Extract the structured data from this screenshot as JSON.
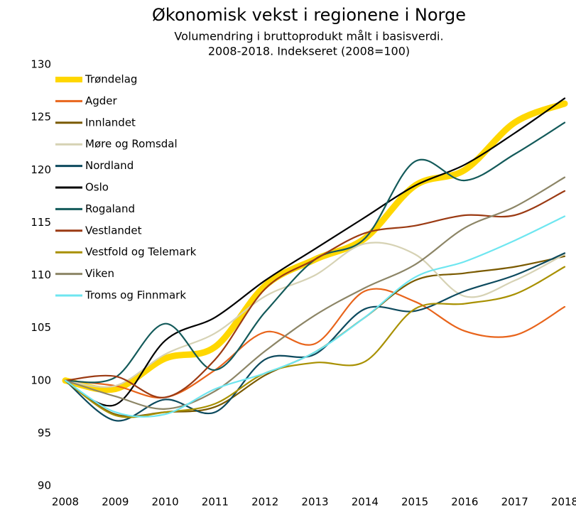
{
  "chart_data": {
    "type": "line",
    "title": "Økonomisk vekst i regionene i Norge",
    "subtitle": [
      "Volumendring i bruttoprodukt målt i basisverdi.",
      "2008-2018. Indekseret (2008=100)"
    ],
    "categories": [
      "2008",
      "2009",
      "2010",
      "2011",
      "2012",
      "2013",
      "2014",
      "2015",
      "2016",
      "2017",
      "2018"
    ],
    "ylim": [
      90,
      130
    ],
    "yticks": [
      90,
      95,
      100,
      105,
      110,
      115,
      120,
      125,
      130
    ],
    "grid": false,
    "legend": "upper left",
    "series": [
      {
        "name": "Trøndelag",
        "color": "#ffd700",
        "values": [
          100,
          99.2,
          102.1,
          103.2,
          109,
          111.5,
          113.5,
          118.5,
          120,
          124.5,
          126.3
        ]
      },
      {
        "name": "Agder",
        "color": "#e8641b",
        "values": [
          100,
          99.5,
          98.4,
          101,
          104.6,
          103.5,
          108.5,
          107.5,
          104.7,
          104.3,
          107
        ]
      },
      {
        "name": "Innlandet",
        "color": "#7a5a00",
        "values": [
          100,
          96.8,
          97,
          97.5,
          100.5,
          102.7,
          106,
          109.5,
          110.2,
          110.8,
          111.8
        ]
      },
      {
        "name": "Møre og Romsdal",
        "color": "#d6d2b4",
        "values": [
          100,
          99.5,
          102.5,
          104.5,
          108,
          110,
          113,
          112,
          108,
          109.5,
          112
        ]
      },
      {
        "name": "Nordland",
        "color": "#0d4a5e",
        "values": [
          100,
          96.2,
          98.2,
          97,
          102,
          102.5,
          106.8,
          106.6,
          108.5,
          110,
          112.1
        ]
      },
      {
        "name": "Oslo",
        "color": "#000000",
        "values": [
          100,
          97.7,
          103.8,
          106,
          109.5,
          112.5,
          115.5,
          118.5,
          120.5,
          123.5,
          126.8
        ]
      },
      {
        "name": "Rogaland",
        "color": "#135a5a",
        "values": [
          100,
          100.3,
          105.4,
          101,
          106.5,
          111.5,
          113.5,
          120.8,
          119,
          121.5,
          124.5
        ]
      },
      {
        "name": "Vestlandet",
        "color": "#9b3a13",
        "values": [
          100,
          100.4,
          98.4,
          102,
          108.7,
          111.5,
          114,
          114.7,
          115.7,
          115.7,
          118
        ]
      },
      {
        "name": "Vestfold og Telemark",
        "color": "#a89000",
        "values": [
          100,
          96.7,
          97,
          97.8,
          100.7,
          101.7,
          101.8,
          106.8,
          107.3,
          108.2,
          110.8
        ]
      },
      {
        "name": "Viken",
        "color": "#8c8566",
        "values": [
          100,
          98.5,
          97.3,
          99,
          102.8,
          106.2,
          108.8,
          111,
          114.5,
          116.5,
          119.3
        ]
      },
      {
        "name": "Troms og Finnmark",
        "color": "#6ee6f0",
        "values": [
          100,
          97,
          96.8,
          99.2,
          100.7,
          102.7,
          106,
          109.8,
          111.3,
          113.3,
          115.6
        ]
      }
    ]
  }
}
